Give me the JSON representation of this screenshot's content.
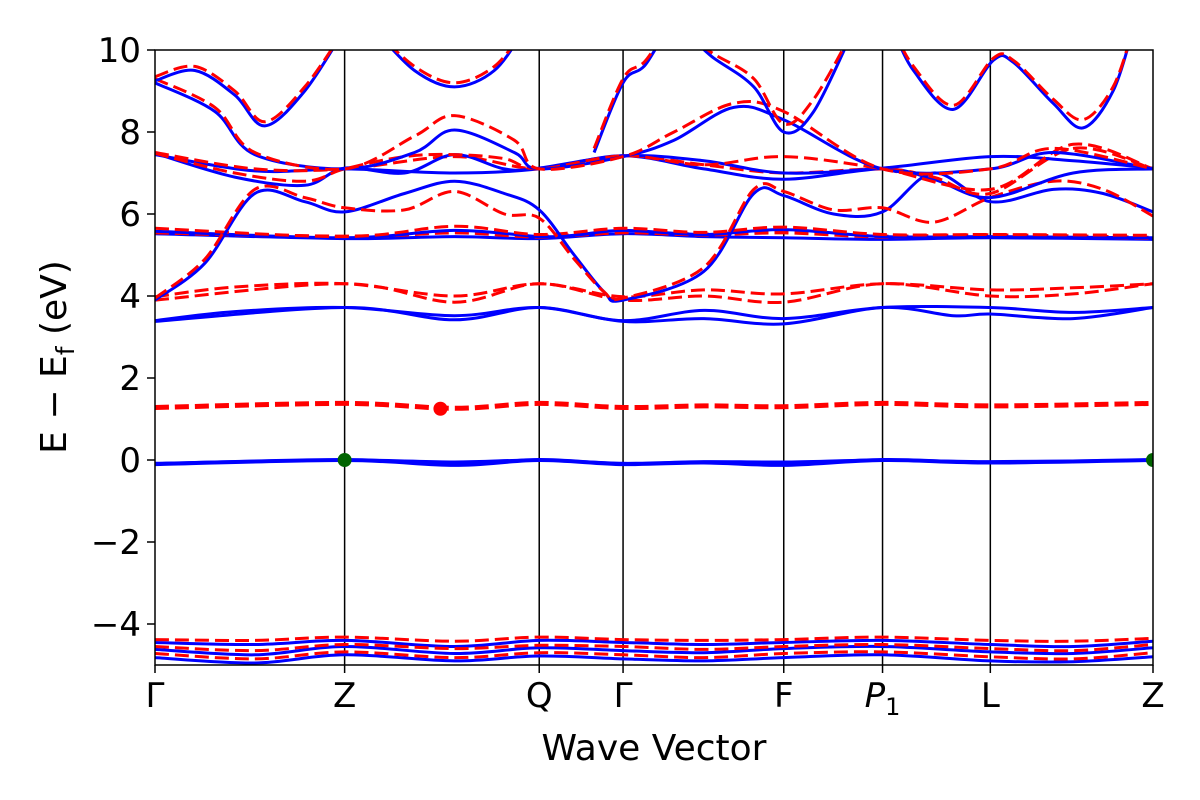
{
  "chart_data": {
    "type": "line",
    "title": "",
    "xlabel": "Wave Vector",
    "ylabel": "E − E",
    "ylabel_sub": "f",
    "ylabel_unit": " (eV)",
    "xlim": [
      0,
      1
    ],
    "ylim": [
      -5,
      10
    ],
    "y_ticks": [
      -4,
      -2,
      0,
      2,
      4,
      6,
      8,
      10
    ],
    "y_tick_labels": [
      "−4",
      "−2",
      "0",
      "2",
      "4",
      "6",
      "8",
      "10"
    ],
    "x_ticks": [
      {
        "label": "Γ",
        "italic": false,
        "sub": "",
        "x": 0.0
      },
      {
        "label": "Z",
        "italic": false,
        "sub": "",
        "x": 0.19
      },
      {
        "label": "Q",
        "italic": false,
        "sub": "",
        "x": 0.385
      },
      {
        "label": "Γ",
        "italic": false,
        "sub": "",
        "x": 0.469
      },
      {
        "label": "F",
        "italic": false,
        "sub": "",
        "x": 0.63
      },
      {
        "label": "P",
        "italic": true,
        "sub": "1",
        "x": 0.729
      },
      {
        "label": "L",
        "italic": false,
        "sub": "",
        "x": 0.837
      },
      {
        "label": "Z",
        "italic": false,
        "sub": "",
        "x": 1.0
      }
    ],
    "grid": false,
    "legend": "none",
    "colors": {
      "spin_up": "#0000ff",
      "spin_down": "#ff0000",
      "vbm_marker": "#006400",
      "cbm_marker": "#ff0000",
      "kpath_lines": "#000000"
    },
    "series": [
      {
        "style": "solid",
        "color": "#0000ff",
        "width": 4,
        "x": [
          0,
          0.19,
          0.3,
          0.385,
          0.469,
          0.55,
          0.63,
          0.729,
          0.837,
          1.0
        ],
        "y": [
          -0.1,
          0.0,
          -0.12,
          0.0,
          -0.1,
          -0.06,
          -0.12,
          0.0,
          -0.06,
          0.0
        ]
      },
      {
        "style": "solid",
        "color": "#0000ff",
        "width": 3,
        "x": [
          0,
          0.19,
          0.3,
          0.385,
          0.469,
          0.55,
          0.63,
          0.729,
          0.837,
          1.0
        ],
        "y": [
          -0.08,
          0.0,
          -0.05,
          0.0,
          -0.08,
          -0.04,
          -0.05,
          0.0,
          -0.04,
          0.0
        ]
      },
      {
        "style": "dashed",
        "color": "#ff0000",
        "width": 5,
        "x": [
          0,
          0.19,
          0.3,
          0.385,
          0.469,
          0.55,
          0.63,
          0.729,
          0.837,
          1.0
        ],
        "y": [
          1.28,
          1.38,
          1.26,
          1.38,
          1.28,
          1.32,
          1.3,
          1.38,
          1.32,
          1.38
        ]
      },
      {
        "style": "solid",
        "color": "#0000ff",
        "width": 3,
        "x": [
          0,
          0.19,
          0.3,
          0.385,
          0.469,
          0.55,
          0.63,
          0.729,
          0.8,
          0.837,
          0.92,
          1.0
        ],
        "y": [
          3.38,
          3.72,
          3.42,
          3.72,
          3.38,
          3.45,
          3.32,
          3.72,
          3.52,
          3.56,
          3.45,
          3.72
        ]
      },
      {
        "style": "solid",
        "color": "#0000ff",
        "width": 3,
        "x": [
          0,
          0.08,
          0.19,
          0.3,
          0.385,
          0.469,
          0.55,
          0.63,
          0.729,
          0.837,
          0.92,
          1.0
        ],
        "y": [
          3.4,
          3.62,
          3.72,
          3.52,
          3.72,
          3.4,
          3.65,
          3.45,
          3.72,
          3.72,
          3.6,
          3.72
        ]
      },
      {
        "style": "dashed",
        "color": "#ff0000",
        "width": 3,
        "x": [
          0,
          0.19,
          0.3,
          0.385,
          0.469,
          0.55,
          0.63,
          0.729,
          0.837,
          0.92,
          1.0
        ],
        "y": [
          3.9,
          4.3,
          3.85,
          4.3,
          3.9,
          4.0,
          3.85,
          4.3,
          4.0,
          4.05,
          4.3
        ]
      },
      {
        "style": "dashed",
        "color": "#ff0000",
        "width": 3,
        "x": [
          0,
          0.08,
          0.19,
          0.3,
          0.385,
          0.469,
          0.55,
          0.63,
          0.729,
          0.837,
          0.92,
          1.0
        ],
        "y": [
          3.98,
          4.22,
          4.3,
          4.0,
          4.3,
          3.98,
          4.15,
          4.05,
          4.3,
          4.15,
          4.2,
          4.3
        ]
      },
      {
        "style": "solid",
        "color": "#0000ff",
        "width": 3,
        "x": [
          0,
          0.19,
          0.3,
          0.385,
          0.469,
          0.55,
          0.63,
          0.729,
          0.837,
          1.0
        ],
        "y": [
          5.52,
          5.4,
          5.45,
          5.4,
          5.52,
          5.45,
          5.42,
          5.38,
          5.42,
          5.38
        ]
      },
      {
        "style": "dashed",
        "color": "#ff0000",
        "width": 4,
        "x": [
          0,
          0.19,
          0.3,
          0.385,
          0.469,
          0.55,
          0.63,
          0.729,
          0.837,
          1.0
        ],
        "y": [
          5.55,
          5.45,
          5.55,
          5.45,
          5.55,
          5.5,
          5.55,
          5.45,
          5.48,
          5.42
        ]
      },
      {
        "style": "solid",
        "color": "#0000ff",
        "width": 3,
        "x": [
          0,
          0.19,
          0.3,
          0.385,
          0.42,
          0.469,
          0.55,
          0.63,
          0.729,
          0.837,
          1.0
        ],
        "y": [
          5.58,
          5.42,
          5.6,
          5.45,
          5.48,
          5.6,
          5.5,
          5.62,
          5.45,
          5.45,
          5.42
        ]
      },
      {
        "style": "dashed",
        "color": "#ff0000",
        "width": 3,
        "x": [
          0,
          0.19,
          0.3,
          0.385,
          0.469,
          0.55,
          0.63,
          0.729,
          0.837,
          1.0
        ],
        "y": [
          5.65,
          5.45,
          5.7,
          5.5,
          5.65,
          5.55,
          5.68,
          5.5,
          5.5,
          5.48
        ]
      },
      {
        "style": "solid",
        "color": "#0000ff",
        "width": 3,
        "x": [
          0,
          0.05,
          0.1,
          0.15,
          0.19,
          0.25,
          0.3,
          0.35,
          0.385,
          0.42,
          0.45,
          0.469,
          0.55,
          0.6,
          0.63,
          0.68,
          0.729,
          0.78,
          0.837,
          0.9,
          0.95,
          1.0
        ],
        "y": [
          3.9,
          4.8,
          6.5,
          6.3,
          6.05,
          6.5,
          6.8,
          6.5,
          6.1,
          5.0,
          4.1,
          3.9,
          4.6,
          6.5,
          6.45,
          6.0,
          6.05,
          7.0,
          6.3,
          6.6,
          6.5,
          6.05
        ]
      },
      {
        "style": "dashed",
        "color": "#ff0000",
        "width": 3,
        "x": [
          0,
          0.05,
          0.1,
          0.15,
          0.19,
          0.25,
          0.3,
          0.35,
          0.385,
          0.42,
          0.45,
          0.469,
          0.55,
          0.6,
          0.63,
          0.68,
          0.729,
          0.78,
          0.837,
          0.9,
          0.95,
          1.0
        ],
        "y": [
          3.95,
          4.9,
          6.6,
          6.4,
          6.15,
          6.1,
          6.55,
          6.0,
          5.9,
          4.9,
          4.1,
          3.95,
          4.7,
          6.6,
          6.55,
          6.1,
          6.15,
          5.8,
          6.4,
          6.8,
          6.6,
          5.95
        ]
      },
      {
        "style": "solid",
        "color": "#0000ff",
        "width": 3,
        "x": [
          0,
          0.1,
          0.19,
          0.3,
          0.385,
          0.469,
          0.55,
          0.63,
          0.729,
          0.78,
          0.837,
          0.92,
          1.0
        ],
        "y": [
          7.45,
          7.05,
          7.1,
          7.0,
          7.1,
          7.42,
          7.1,
          6.85,
          7.1,
          6.85,
          6.4,
          7.0,
          7.1
        ]
      },
      {
        "style": "dashed",
        "color": "#ff0000",
        "width": 3,
        "x": [
          0,
          0.1,
          0.19,
          0.3,
          0.385,
          0.469,
          0.55,
          0.63,
          0.729,
          0.78,
          0.837,
          0.92,
          1.0
        ],
        "y": [
          7.5,
          7.1,
          7.1,
          7.4,
          7.1,
          7.42,
          7.2,
          7.0,
          7.1,
          6.9,
          6.5,
          7.6,
          7.1
        ]
      },
      {
        "style": "solid",
        "color": "#0000ff",
        "width": 3,
        "x": [
          0,
          0.08,
          0.15,
          0.19,
          0.25,
          0.3,
          0.35,
          0.385,
          0.469,
          0.55,
          0.63,
          0.729,
          0.837,
          0.92,
          1.0
        ],
        "y": [
          7.48,
          6.9,
          6.7,
          7.12,
          7.0,
          7.45,
          7.1,
          7.12,
          7.42,
          7.3,
          7.0,
          7.12,
          7.4,
          7.3,
          7.12
        ]
      },
      {
        "style": "dashed",
        "color": "#ff0000",
        "width": 3,
        "x": [
          0,
          0.08,
          0.15,
          0.19,
          0.25,
          0.3,
          0.35,
          0.385,
          0.469,
          0.55,
          0.63,
          0.729,
          0.837,
          0.92,
          1.0
        ],
        "y": [
          7.48,
          7.0,
          6.8,
          7.1,
          7.4,
          7.45,
          7.35,
          7.1,
          7.42,
          7.2,
          7.4,
          7.1,
          6.6,
          7.7,
          7.1
        ]
      },
      {
        "style": "solid",
        "color": "#0000ff",
        "width": 3,
        "x": [
          0,
          0.06,
          0.1,
          0.19,
          0.26,
          0.3,
          0.36,
          0.385,
          0.469,
          0.52,
          0.58,
          0.63,
          0.729,
          0.837,
          0.9,
          1.0
        ],
        "y": [
          9.2,
          8.5,
          7.45,
          7.1,
          7.5,
          8.05,
          7.5,
          7.1,
          7.4,
          7.8,
          8.6,
          8.3,
          7.1,
          7.1,
          7.5,
          7.1
        ]
      },
      {
        "style": "dashed",
        "color": "#ff0000",
        "width": 3,
        "x": [
          0,
          0.06,
          0.1,
          0.19,
          0.26,
          0.3,
          0.36,
          0.385,
          0.469,
          0.52,
          0.58,
          0.63,
          0.729,
          0.837,
          0.9,
          1.0
        ],
        "y": [
          9.3,
          8.6,
          7.5,
          7.1,
          7.9,
          8.4,
          7.8,
          7.1,
          7.4,
          8.0,
          8.7,
          8.5,
          7.1,
          7.1,
          7.6,
          7.1
        ]
      },
      {
        "style": "solid",
        "color": "#0000ff",
        "width": 3,
        "x": [
          0,
          0.04,
          0.08,
          0.11,
          0.15,
          0.19
        ],
        "y": [
          9.25,
          9.5,
          8.9,
          8.15,
          9.0,
          10.5
        ]
      },
      {
        "style": "dashed",
        "color": "#ff0000",
        "width": 3,
        "x": [
          0,
          0.04,
          0.08,
          0.11,
          0.15,
          0.19
        ],
        "y": [
          9.35,
          9.6,
          9.0,
          8.25,
          9.1,
          10.5
        ]
      },
      {
        "style": "solid",
        "color": "#0000ff",
        "width": 3,
        "x": [
          0.22,
          0.26,
          0.3,
          0.34,
          0.37
        ],
        "y": [
          10.5,
          9.5,
          9.1,
          9.5,
          10.5
        ]
      },
      {
        "style": "dashed",
        "color": "#ff0000",
        "width": 3,
        "x": [
          0.22,
          0.26,
          0.3,
          0.34,
          0.37
        ],
        "y": [
          10.5,
          9.6,
          9.2,
          9.6,
          10.5
        ]
      },
      {
        "style": "solid",
        "color": "#0000ff",
        "width": 3,
        "x": [
          0.44,
          0.469,
          0.49,
          0.52,
          0.56,
          0.6,
          0.63,
          0.66,
          0.7
        ],
        "y": [
          7.5,
          9.2,
          9.6,
          10.5,
          9.8,
          9.1,
          8.0,
          8.5,
          10.5
        ]
      },
      {
        "style": "dashed",
        "color": "#ff0000",
        "width": 3,
        "x": [
          0.44,
          0.469,
          0.49,
          0.52,
          0.56,
          0.6,
          0.63,
          0.66,
          0.7
        ],
        "y": [
          7.6,
          9.3,
          9.7,
          10.5,
          9.9,
          9.3,
          8.2,
          8.8,
          10.5
        ]
      },
      {
        "style": "solid",
        "color": "#0000ff",
        "width": 3,
        "x": [
          0.74,
          0.76,
          0.8,
          0.84,
          0.86,
          0.9,
          0.93,
          0.96,
          0.98
        ],
        "y": [
          10.5,
          9.5,
          8.55,
          9.75,
          9.7,
          8.7,
          8.1,
          9.0,
          10.5
        ]
      },
      {
        "style": "dashed",
        "color": "#ff0000",
        "width": 3,
        "x": [
          0.74,
          0.76,
          0.8,
          0.84,
          0.86,
          0.9,
          0.93,
          0.96,
          0.98
        ],
        "y": [
          10.5,
          9.6,
          8.65,
          9.8,
          9.75,
          8.8,
          8.3,
          9.1,
          10.5
        ]
      },
      {
        "style": "solid",
        "color": "#0000ff",
        "width": 3,
        "x": [
          0,
          0.1,
          0.19,
          0.3,
          0.385,
          0.469,
          0.55,
          0.63,
          0.729,
          0.837,
          0.92,
          1.0
        ],
        "y": [
          -4.45,
          -4.5,
          -4.4,
          -4.55,
          -4.4,
          -4.45,
          -4.5,
          -4.45,
          -4.4,
          -4.5,
          -4.55,
          -4.42
        ]
      },
      {
        "style": "dashed",
        "color": "#ff0000",
        "width": 3,
        "x": [
          0,
          0.1,
          0.19,
          0.3,
          0.385,
          0.469,
          0.55,
          0.63,
          0.729,
          0.837,
          0.92,
          1.0
        ],
        "y": [
          -4.38,
          -4.4,
          -4.32,
          -4.42,
          -4.32,
          -4.38,
          -4.4,
          -4.38,
          -4.32,
          -4.4,
          -4.42,
          -4.35
        ]
      },
      {
        "style": "solid",
        "color": "#0000ff",
        "width": 3,
        "x": [
          0,
          0.1,
          0.19,
          0.3,
          0.385,
          0.469,
          0.55,
          0.63,
          0.729,
          0.837,
          0.92,
          1.0
        ],
        "y": [
          -4.62,
          -4.75,
          -4.55,
          -4.72,
          -4.58,
          -4.65,
          -4.7,
          -4.6,
          -4.55,
          -4.68,
          -4.72,
          -4.58
        ]
      },
      {
        "style": "dashed",
        "color": "#ff0000",
        "width": 3,
        "x": [
          0,
          0.1,
          0.19,
          0.3,
          0.385,
          0.469,
          0.55,
          0.63,
          0.729,
          0.837,
          0.92,
          1.0
        ],
        "y": [
          -4.55,
          -4.65,
          -4.5,
          -4.6,
          -4.52,
          -4.55,
          -4.62,
          -4.55,
          -4.5,
          -4.6,
          -4.65,
          -4.5
        ]
      },
      {
        "style": "solid",
        "color": "#0000ff",
        "width": 3,
        "x": [
          0,
          0.1,
          0.19,
          0.3,
          0.385,
          0.469,
          0.55,
          0.63,
          0.729,
          0.837,
          0.92,
          1.0
        ],
        "y": [
          -4.82,
          -4.95,
          -4.75,
          -4.9,
          -4.78,
          -4.85,
          -4.9,
          -4.82,
          -4.75,
          -4.9,
          -4.92,
          -4.8
        ]
      },
      {
        "style": "dashed",
        "color": "#ff0000",
        "width": 3,
        "x": [
          0,
          0.1,
          0.19,
          0.3,
          0.385,
          0.469,
          0.55,
          0.63,
          0.729,
          0.837,
          0.92,
          1.0
        ],
        "y": [
          -4.72,
          -4.85,
          -4.68,
          -4.82,
          -4.7,
          -4.75,
          -4.82,
          -4.72,
          -4.68,
          -4.8,
          -4.85,
          -4.7
        ]
      }
    ],
    "markers": [
      {
        "name": "vbm-marker",
        "color": "#006400",
        "x": 0.19,
        "y": 0.0
      },
      {
        "name": "vbm-marker",
        "color": "#006400",
        "x": 1.0,
        "y": 0.0
      },
      {
        "name": "cbm-marker",
        "color": "#ff0000",
        "x": 0.286,
        "y": 1.25
      }
    ]
  }
}
